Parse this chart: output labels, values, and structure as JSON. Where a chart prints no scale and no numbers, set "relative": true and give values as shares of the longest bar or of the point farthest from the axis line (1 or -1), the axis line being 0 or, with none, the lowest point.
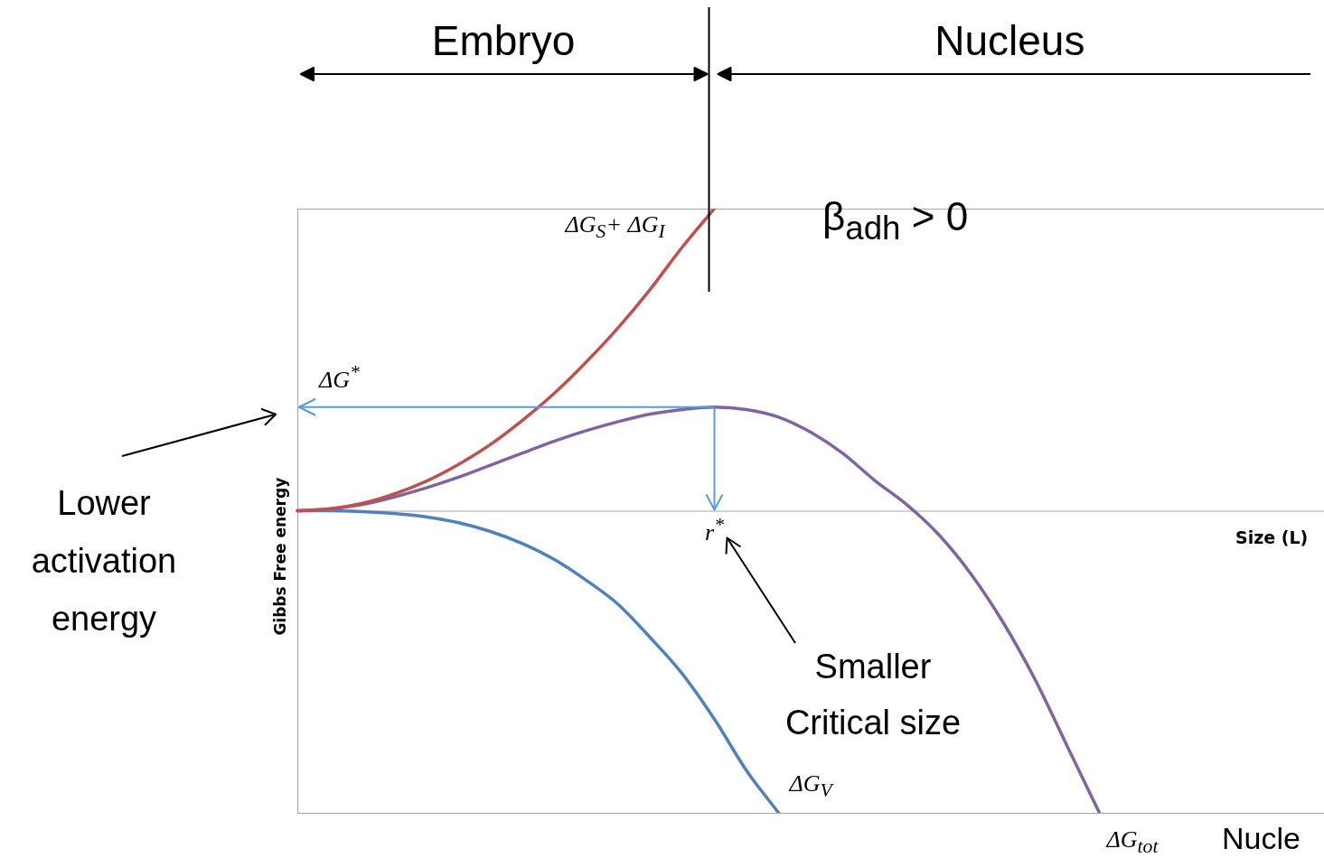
{
  "chart_data": {
    "type": "line",
    "relative": true,
    "ylabel": "Gibbs Free energy",
    "xlabel": "Size (L)",
    "categories": [
      null,
      null,
      null,
      null,
      null,
      null,
      null,
      null,
      null,
      null,
      null,
      null,
      null,
      null,
      null,
      null,
      null,
      null,
      null,
      null,
      null,
      null,
      null,
      null,
      null,
      null,
      null,
      null,
      null,
      null,
      null,
      null,
      null
    ],
    "series": [
      {
        "name": "ΔG$_{S}$+ ΔG$_{I}$",
        "color": "#c0504d",
        "values": [
          0,
          0.006,
          0.024,
          0.055,
          0.097,
          0.152,
          0.218,
          0.298,
          0.388,
          0.492,
          0.606,
          0.733,
          0.873,
          1,
          null,
          null,
          null,
          null,
          null,
          null,
          null,
          null,
          null,
          null,
          null,
          null,
          null,
          null,
          null,
          null,
          null,
          null,
          null
        ]
      },
      {
        "name": "ΔG$_{tot}$",
        "color": "#8064a2",
        "values": [
          0,
          0.006,
          0.02,
          0.045,
          0.075,
          0.11,
          0.15,
          0.19,
          0.23,
          0.265,
          0.295,
          0.32,
          0.335,
          0.343,
          0.335,
          0.31,
          0.26,
          0.19,
          0.1,
          0.02,
          -0.08,
          -0.21,
          -0.37,
          -0.56,
          -0.78,
          -1,
          null,
          null,
          null,
          null,
          null,
          null,
          null
        ]
      },
      {
        "name": "ΔG$_{V}$",
        "color": "#4f81bd",
        "values": [
          0,
          0,
          -0.003,
          -0.009,
          -0.02,
          -0.039,
          -0.068,
          -0.108,
          -0.161,
          -0.23,
          -0.31,
          -0.42,
          -0.54,
          -0.69,
          -0.86,
          -1,
          null,
          null,
          null,
          null,
          null,
          null,
          null,
          null,
          null,
          null,
          null,
          null,
          null,
          null,
          null,
          null,
          null
        ]
      }
    ],
    "annotations": [
      "Embryo",
      "Nucleus",
      "β$_{adh}$ > 0",
      "ΔG$^{*}$",
      "r$^{*}$",
      "Lower activation energy",
      "Smaller Critical size",
      "Nucle"
    ],
    "legend": false
  }
}
